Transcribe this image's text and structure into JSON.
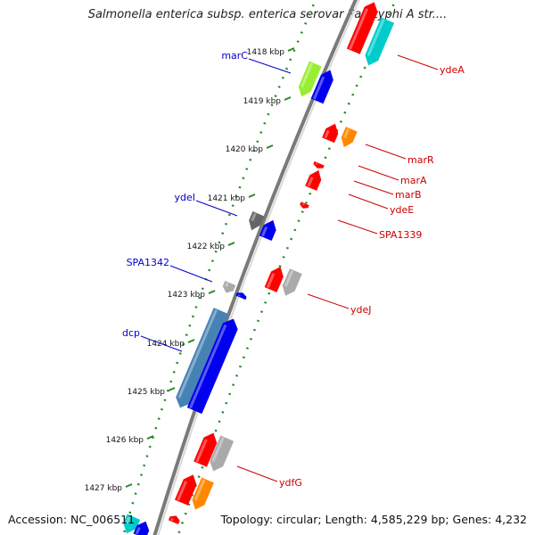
{
  "title": "Salmonella enterica subsp. enterica serovar Paratyphi A str....",
  "footer": {
    "accession": "Accession: NC_006511",
    "stats": "Topology: circular; Length: 4,585,229 bp; Genes: 4,232"
  },
  "colors": {
    "red": "#ff0000",
    "blue": "#0000ee",
    "cyan": "#00cccc",
    "orange": "#ff8800",
    "lime": "#99ee33",
    "gray": "#aaaaaa",
    "darkgray": "#666666",
    "steelblue": "#4682b4",
    "ruler": "#228b22",
    "label_left": "#0000cc",
    "label_right": "#cc0000",
    "backbone": "#7a7a7a"
  },
  "kbp_ticks": [
    {
      "label": "1418 kbp"
    },
    {
      "label": "1419 kbp"
    },
    {
      "label": "1420 kbp"
    },
    {
      "label": "1421 kbp"
    },
    {
      "label": "1422 kbp"
    },
    {
      "label": "1423 kbp"
    },
    {
      "label": "1424 kbp"
    },
    {
      "label": "1425 kbp"
    },
    {
      "label": "1426 kbp"
    },
    {
      "label": "1427 kbp"
    }
  ],
  "gene_labels_left": [
    {
      "name": "marC"
    },
    {
      "name": "ydeI"
    },
    {
      "name": "SPA1342"
    },
    {
      "name": "dcp"
    }
  ],
  "gene_labels_right": [
    {
      "name": "ydeA"
    },
    {
      "name": "marR"
    },
    {
      "name": "marA"
    },
    {
      "name": "marB"
    },
    {
      "name": "ydeE"
    },
    {
      "name": "SPA1339"
    },
    {
      "name": "ydeJ"
    },
    {
      "name": "ydfG"
    }
  ]
}
